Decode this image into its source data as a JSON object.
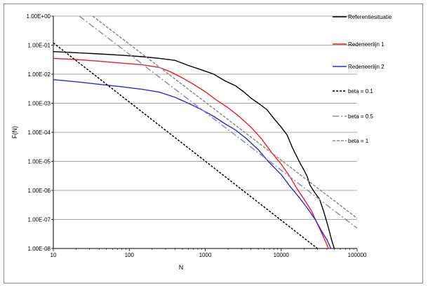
{
  "chart_data": {
    "type": "line",
    "title": "",
    "xlabel": "N",
    "ylabel": "F(N)",
    "x_scale": "log",
    "y_scale": "log",
    "xlim": [
      10,
      100000
    ],
    "ylim": [
      1e-08,
      1
    ],
    "grid": "horizontal",
    "legend_position": "right",
    "x_ticks": [
      "10",
      "100",
      "1000",
      "10000",
      "100000"
    ],
    "y_ticks": [
      "1.00E-08",
      "1.00E-07",
      "1.00E-06",
      "1.00E-05",
      "1.00E-04",
      "1.00E-03",
      "1.00E-02",
      "1.00E-01",
      "1.00E+00"
    ],
    "series": [
      {
        "name": "Referentiesituatie",
        "color": "#000000",
        "dash": "solid",
        "points": [
          [
            10,
            0.06
          ],
          [
            20,
            0.055
          ],
          [
            40,
            0.05
          ],
          [
            80,
            0.045
          ],
          [
            150,
            0.04
          ],
          [
            250,
            0.035
          ],
          [
            400,
            0.03
          ],
          [
            600,
            0.02
          ],
          [
            900,
            0.014
          ],
          [
            1300,
            0.01
          ],
          [
            1800,
            0.006
          ],
          [
            2500,
            0.004
          ],
          [
            3200,
            0.0025
          ],
          [
            4000,
            0.0015
          ],
          [
            5000,
            0.001
          ],
          [
            6500,
            0.0006
          ],
          [
            8000,
            0.0003
          ],
          [
            10000,
            0.00015
          ],
          [
            12000,
            8e-05
          ],
          [
            14000,
            3e-05
          ],
          [
            16000,
            1.5e-05
          ],
          [
            18000,
            8e-06
          ],
          [
            20000,
            5e-06
          ],
          [
            22000,
            3e-06
          ],
          [
            24000,
            1.5e-06
          ],
          [
            28000,
            8e-07
          ],
          [
            32000,
            5e-07
          ],
          [
            36000,
            2e-07
          ],
          [
            40000,
            8e-08
          ],
          [
            43000,
            4e-08
          ],
          [
            46000,
            2e-08
          ],
          [
            50000,
            1e-08
          ]
        ]
      },
      {
        "name": "Redeneerlijn 1",
        "color": "#ee1c24",
        "dash": "solid",
        "points": [
          [
            10,
            0.035
          ],
          [
            20,
            0.032
          ],
          [
            40,
            0.028
          ],
          [
            80,
            0.024
          ],
          [
            150,
            0.021
          ],
          [
            250,
            0.017
          ],
          [
            350,
            0.012
          ],
          [
            500,
            0.0075
          ],
          [
            700,
            0.0045
          ],
          [
            1000,
            0.0025
          ],
          [
            1400,
            0.0013
          ],
          [
            2000,
            0.0007
          ],
          [
            2800,
            0.00035
          ],
          [
            4000,
            0.00015
          ],
          [
            5500,
            6e-05
          ],
          [
            7500,
            2e-05
          ],
          [
            10000,
            8e-06
          ],
          [
            13000,
            3e-06
          ],
          [
            16000,
            1.2e-06
          ],
          [
            20000,
            5e-07
          ],
          [
            25000,
            2e-07
          ],
          [
            30000,
            7e-08
          ],
          [
            35000,
            3e-08
          ],
          [
            42000,
            1e-08
          ]
        ]
      },
      {
        "name": "Redeneerlijn 2",
        "color": "#2b2bd6",
        "dash": "solid",
        "points": [
          [
            10,
            0.0065
          ],
          [
            20,
            0.0055
          ],
          [
            40,
            0.0045
          ],
          [
            80,
            0.0037
          ],
          [
            150,
            0.003
          ],
          [
            250,
            0.0024
          ],
          [
            400,
            0.0016
          ],
          [
            600,
            0.001
          ],
          [
            900,
            0.0006
          ],
          [
            1300,
            0.00035
          ],
          [
            1800,
            0.0002
          ],
          [
            2500,
            0.00012
          ],
          [
            3500,
            6e-05
          ],
          [
            5000,
            2.5e-05
          ],
          [
            7000,
            9e-06
          ],
          [
            10000,
            3.5e-06
          ],
          [
            13000,
            1.4e-06
          ],
          [
            17000,
            6e-07
          ],
          [
            22000,
            2.5e-07
          ],
          [
            28000,
            1e-07
          ],
          [
            34000,
            4e-08
          ],
          [
            40000,
            2e-08
          ],
          [
            45000,
            1e-08
          ]
        ]
      },
      {
        "name": "beta = 0.1",
        "color": "#000000",
        "dash": "3,2",
        "points": [
          [
            10,
            0.12
          ],
          [
            30000,
            1e-08
          ]
        ]
      },
      {
        "name": "beta = 0.5",
        "color": "#8e8eb4",
        "dash": "9,3,2,3",
        "points": [
          [
            22,
            1
          ],
          [
            100000,
            5e-08
          ]
        ]
      },
      {
        "name": "beta = 1",
        "color": "#8a8a8a",
        "dash": "4,2",
        "points": [
          [
            33,
            1
          ],
          [
            100000,
            1.1e-07
          ]
        ]
      }
    ]
  }
}
